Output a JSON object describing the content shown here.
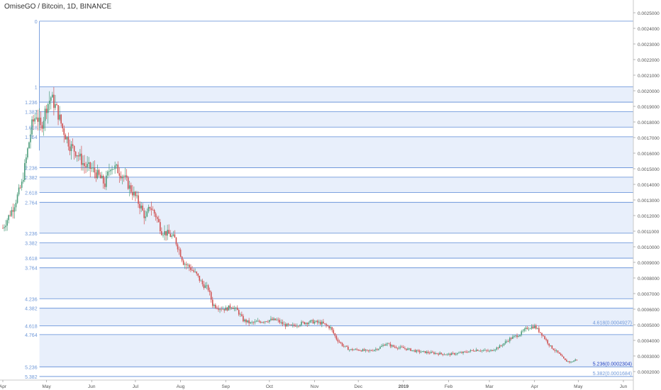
{
  "symbol_header": {
    "pair": "OmiseGO / Bitcoin",
    "interval": "1D",
    "exchange": "BINANCE"
  },
  "colors": {
    "fib_line": "#5b8ad6",
    "fib_band": "#e8effb",
    "fib_label": "#6f98d8",
    "candle_up": "#4c9c7a",
    "candle_down": "#d05050",
    "axis_text": "#555555",
    "highlight_label": "#1f3fbf"
  },
  "chart_data": {
    "type": "candlestick",
    "title": "OmiseGO / Bitcoin, 1D, BINANCE",
    "xlim": [
      "2018-04-01",
      "2019-06-14"
    ],
    "ylim": [
      0.0001,
      0.00258
    ],
    "y_tick_labels": [
      "0.0025000",
      "0.0024000",
      "0.0023000",
      "0.0022000",
      "0.0021000",
      "0.0020000",
      "0.0019000",
      "0.0018000",
      "0.0017000",
      "0.0016000",
      "0.0015000",
      "0.0014000",
      "0.0013000",
      "0.0012000",
      "0.0011000",
      "0.0010000",
      "0.0009000",
      "0.0008000",
      "0.0007000",
      "0.0006000",
      "0.0005000",
      "0.0004000",
      "0.0003000",
      "0.0002000"
    ],
    "y_ticks": [
      0.0025,
      0.0024,
      0.0023,
      0.0022,
      0.0021,
      0.002,
      0.0019,
      0.0018,
      0.0017,
      0.0016,
      0.0015,
      0.0014,
      0.0013,
      0.0012,
      0.0011,
      0.001,
      0.0009,
      0.0008,
      0.0007,
      0.0006,
      0.0005,
      0.0004,
      0.0003,
      0.0002
    ],
    "x_tick_labels": [
      "Apr",
      "May",
      "Jun",
      "Jul",
      "Aug",
      "Sep",
      "Oct",
      "Nov",
      "Dec",
      "2019",
      "Feb",
      "Mar",
      "Apr",
      "May",
      "Jun"
    ],
    "x_ticks": [
      "2018-04-01",
      "2018-05-01",
      "2018-06-01",
      "2018-07-01",
      "2018-08-01",
      "2018-09-01",
      "2018-10-01",
      "2018-11-01",
      "2018-12-01",
      "2019-01-01",
      "2019-02-01",
      "2019-03-01",
      "2019-04-01",
      "2019-05-01",
      "2019-06-01"
    ],
    "fib_extension": {
      "start_date": "2018-05-01",
      "end_date": "2019-06-14",
      "levels": [
        {
          "label": "0",
          "value": 0.002446
        },
        {
          "label": "1",
          "value": 0.002026
        },
        {
          "label": "1.236",
          "value": 0.001927
        },
        {
          "label": "1.382",
          "value": 0.001866
        },
        {
          "label": "1.618",
          "value": 0.001767
        },
        {
          "label": "1.764",
          "value": 0.001705
        },
        {
          "label": "2.236",
          "value": 0.001507
        },
        {
          "label": "2.382",
          "value": 0.001446
        },
        {
          "label": "2.618",
          "value": 0.001347
        },
        {
          "label": "2.764",
          "value": 0.001285
        },
        {
          "label": "3.236",
          "value": 0.001087
        },
        {
          "label": "3.382",
          "value": 0.001026
        },
        {
          "label": "3.618",
          "value": 0.000927
        },
        {
          "label": "3.764",
          "value": 0.000865
        },
        {
          "label": "4.236",
          "value": 0.000667
        },
        {
          "label": "4.382",
          "value": 0.000606
        },
        {
          "label": "4.618",
          "value": 0.0004927
        },
        {
          "label": "4.764",
          "value": 0.000437
        },
        {
          "label": "5.236",
          "value": 0.0002304
        },
        {
          "label": "5.382",
          "value": 0.0001684
        }
      ],
      "right_labels": [
        {
          "text": "4.618(0.0004927)",
          "value": 0.0004927
        },
        {
          "text": "5.236(0.0002304)",
          "value": 0.0002304
        },
        {
          "text": "5.382(0.0001684)",
          "value": 0.0001684
        }
      ]
    },
    "price_path": [
      [
        "2018-04-01",
        0.00112
      ],
      [
        "2018-04-08",
        0.00125
      ],
      [
        "2018-04-14",
        0.0014
      ],
      [
        "2018-04-18",
        0.00162
      ],
      [
        "2018-04-21",
        0.00178
      ],
      [
        "2018-04-24",
        0.00185
      ],
      [
        "2018-04-27",
        0.00176
      ],
      [
        "2018-05-01",
        0.0019
      ],
      [
        "2018-05-04",
        0.00196
      ],
      [
        "2018-05-08",
        0.00188
      ],
      [
        "2018-05-12",
        0.00176
      ],
      [
        "2018-05-17",
        0.00165
      ],
      [
        "2018-05-22",
        0.0016
      ],
      [
        "2018-05-27",
        0.00152
      ],
      [
        "2018-06-01",
        0.0015
      ],
      [
        "2018-06-06",
        0.00145
      ],
      [
        "2018-06-10",
        0.0014
      ],
      [
        "2018-06-14",
        0.00152
      ],
      [
        "2018-06-18",
        0.0015
      ],
      [
        "2018-06-23",
        0.00145
      ],
      [
        "2018-06-27",
        0.00138
      ],
      [
        "2018-07-01",
        0.00132
      ],
      [
        "2018-07-05",
        0.00125
      ],
      [
        "2018-07-08",
        0.00118
      ],
      [
        "2018-07-11",
        0.00126
      ],
      [
        "2018-07-15",
        0.0012
      ],
      [
        "2018-07-19",
        0.0011
      ],
      [
        "2018-07-24",
        0.00108
      ],
      [
        "2018-07-28",
        0.00105
      ],
      [
        "2018-07-31",
        0.00098
      ],
      [
        "2018-08-03",
        0.0009
      ],
      [
        "2018-08-07",
        0.00087
      ],
      [
        "2018-08-12",
        0.00082
      ],
      [
        "2018-08-16",
        0.00076
      ],
      [
        "2018-08-20",
        0.00073
      ],
      [
        "2018-08-23",
        0.00063
      ],
      [
        "2018-08-27",
        0.00061
      ],
      [
        "2018-09-01",
        0.0006
      ],
      [
        "2018-09-05",
        0.00062
      ],
      [
        "2018-09-09",
        0.00059
      ],
      [
        "2018-09-13",
        0.00053
      ],
      [
        "2018-09-18",
        0.00051
      ],
      [
        "2018-09-24",
        0.00052
      ],
      [
        "2018-10-01",
        0.00053
      ],
      [
        "2018-10-06",
        0.00053
      ],
      [
        "2018-10-11",
        0.0005
      ],
      [
        "2018-10-16",
        0.00049
      ],
      [
        "2018-10-23",
        0.00051
      ],
      [
        "2018-10-30",
        0.00052
      ],
      [
        "2018-11-06",
        0.00051
      ],
      [
        "2018-11-12",
        0.00048
      ],
      [
        "2018-11-16",
        0.00041
      ],
      [
        "2018-11-20",
        0.00037
      ],
      [
        "2018-11-25",
        0.00034
      ],
      [
        "2018-12-01",
        0.00034
      ],
      [
        "2018-12-08",
        0.00033
      ],
      [
        "2018-12-15",
        0.00035
      ],
      [
        "2018-12-20",
        0.00038
      ],
      [
        "2018-12-25",
        0.00036
      ],
      [
        "2019-01-01",
        0.00035
      ],
      [
        "2019-01-10",
        0.00033
      ],
      [
        "2019-01-20",
        0.00032
      ],
      [
        "2019-02-01",
        0.00031
      ],
      [
        "2019-02-10",
        0.00032
      ],
      [
        "2019-02-20",
        0.00034
      ],
      [
        "2019-03-01",
        0.00033
      ],
      [
        "2019-03-08",
        0.00036
      ],
      [
        "2019-03-15",
        0.00041
      ],
      [
        "2019-03-22",
        0.00044
      ],
      [
        "2019-03-27",
        0.00048
      ],
      [
        "2019-04-01",
        0.00049
      ],
      [
        "2019-04-06",
        0.00044
      ],
      [
        "2019-04-12",
        0.00036
      ],
      [
        "2019-04-17",
        0.00032
      ],
      [
        "2019-04-22",
        0.00027
      ],
      [
        "2019-04-26",
        0.00026
      ],
      [
        "2019-04-30",
        0.00028
      ]
    ]
  }
}
